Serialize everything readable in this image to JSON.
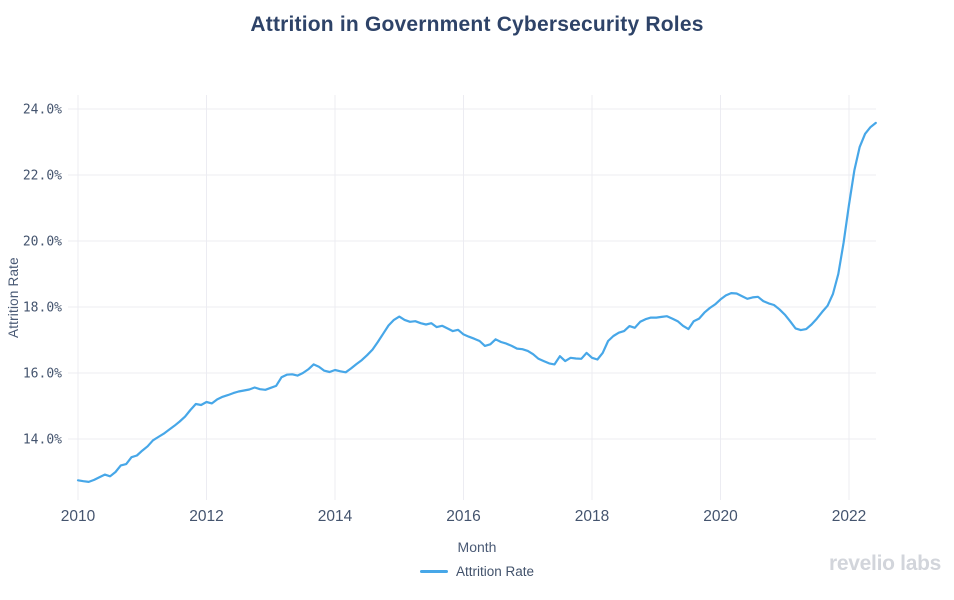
{
  "branding": {
    "logo_text": "revelio labs"
  },
  "colors": {
    "line": "#47a7e8",
    "grid": "#ececf2",
    "title_text": "#2e4368",
    "axis_text": "#44546e",
    "logo_text": "#d2d5db",
    "background": "#ffffff"
  },
  "chart_data": {
    "type": "line",
    "title": "Attrition in Government Cybersecurity Roles",
    "xlabel": "Month",
    "ylabel": "Attrition Rate",
    "series_name": "Attrition Rate",
    "unit": "percent",
    "frequency": "monthly",
    "x_start": "2010-01",
    "x_end": "2022-06",
    "grid": true,
    "legend_position": "bottom-center",
    "y_ticks": [
      "24.0%",
      "22.0%",
      "20.0%",
      "18.0%",
      "16.0%",
      "14.0%"
    ],
    "y_tick_values": [
      24,
      22,
      20,
      18,
      16,
      14
    ],
    "x_ticks": [
      "2010",
      "2012",
      "2014",
      "2016",
      "2018",
      "2020",
      "2022"
    ],
    "x_tick_years": [
      2010,
      2012,
      2014,
      2016,
      2018,
      2020,
      2022
    ],
    "ylim": [
      12.1,
      24.4
    ],
    "months": [
      "2010-01",
      "2010-02",
      "2010-03",
      "2010-04",
      "2010-05",
      "2010-06",
      "2010-07",
      "2010-08",
      "2010-09",
      "2010-10",
      "2010-11",
      "2010-12",
      "2011-01",
      "2011-02",
      "2011-03",
      "2011-04",
      "2011-05",
      "2011-06",
      "2011-07",
      "2011-08",
      "2011-09",
      "2011-10",
      "2011-11",
      "2011-12",
      "2012-01",
      "2012-02",
      "2012-03",
      "2012-04",
      "2012-05",
      "2012-06",
      "2012-07",
      "2012-08",
      "2012-09",
      "2012-10",
      "2012-11",
      "2012-12",
      "2013-01",
      "2013-02",
      "2013-03",
      "2013-04",
      "2013-05",
      "2013-06",
      "2013-07",
      "2013-08",
      "2013-09",
      "2013-10",
      "2013-11",
      "2013-12",
      "2014-01",
      "2014-02",
      "2014-03",
      "2014-04",
      "2014-05",
      "2014-06",
      "2014-07",
      "2014-08",
      "2014-09",
      "2014-10",
      "2014-11",
      "2014-12",
      "2015-01",
      "2015-02",
      "2015-03",
      "2015-04",
      "2015-05",
      "2015-06",
      "2015-07",
      "2015-08",
      "2015-09",
      "2015-10",
      "2015-11",
      "2015-12",
      "2016-01",
      "2016-02",
      "2016-03",
      "2016-04",
      "2016-05",
      "2016-06",
      "2016-07",
      "2016-08",
      "2016-09",
      "2016-10",
      "2016-11",
      "2016-12",
      "2017-01",
      "2017-02",
      "2017-03",
      "2017-04",
      "2017-05",
      "2017-06",
      "2017-07",
      "2017-08",
      "2017-09",
      "2017-10",
      "2017-11",
      "2017-12",
      "2018-01",
      "2018-02",
      "2018-03",
      "2018-04",
      "2018-05",
      "2018-06",
      "2018-07",
      "2018-08",
      "2018-09",
      "2018-10",
      "2018-11",
      "2018-12",
      "2019-01",
      "2019-02",
      "2019-03",
      "2019-04",
      "2019-05",
      "2019-06",
      "2019-07",
      "2019-08",
      "2019-09",
      "2019-10",
      "2019-11",
      "2019-12",
      "2020-01",
      "2020-02",
      "2020-03",
      "2020-04",
      "2020-05",
      "2020-06",
      "2020-07",
      "2020-08",
      "2020-09",
      "2020-10",
      "2020-11",
      "2020-12",
      "2021-01",
      "2021-02",
      "2021-03",
      "2021-04",
      "2021-05",
      "2021-06",
      "2021-07",
      "2021-08",
      "2021-09",
      "2021-10",
      "2021-11",
      "2021-12",
      "2022-01",
      "2022-02",
      "2022-03",
      "2022-04",
      "2022-05",
      "2022-06"
    ],
    "values": [
      12.75,
      12.72,
      12.7,
      12.76,
      12.84,
      12.92,
      12.87,
      13.0,
      13.2,
      13.24,
      13.45,
      13.5,
      13.65,
      13.78,
      13.96,
      14.06,
      14.16,
      14.28,
      14.4,
      14.53,
      14.68,
      14.88,
      15.06,
      15.03,
      15.12,
      15.08,
      15.2,
      15.28,
      15.33,
      15.39,
      15.44,
      15.47,
      15.5,
      15.56,
      15.51,
      15.49,
      15.55,
      15.61,
      15.87,
      15.95,
      15.96,
      15.92,
      16.0,
      16.11,
      16.26,
      16.19,
      16.07,
      16.03,
      16.09,
      16.05,
      16.02,
      16.14,
      16.27,
      16.39,
      16.54,
      16.71,
      16.94,
      17.19,
      17.44,
      17.61,
      17.71,
      17.61,
      17.55,
      17.57,
      17.51,
      17.47,
      17.51,
      17.39,
      17.43,
      17.35,
      17.27,
      17.31,
      17.17,
      17.1,
      17.04,
      16.97,
      16.82,
      16.87,
      17.02,
      16.94,
      16.89,
      16.82,
      16.74,
      16.72,
      16.67,
      16.57,
      16.43,
      16.36,
      16.29,
      16.26,
      16.51,
      16.36,
      16.46,
      16.44,
      16.43,
      16.61,
      16.46,
      16.41,
      16.61,
      16.97,
      17.12,
      17.22,
      17.27,
      17.42,
      17.37,
      17.55,
      17.63,
      17.68,
      17.68,
      17.7,
      17.72,
      17.65,
      17.57,
      17.43,
      17.33,
      17.57,
      17.65,
      17.83,
      17.97,
      18.08,
      18.23,
      18.35,
      18.42,
      18.41,
      18.33,
      18.25,
      18.29,
      18.31,
      18.18,
      18.11,
      18.06,
      17.93,
      17.77,
      17.57,
      17.35,
      17.3,
      17.33,
      17.47,
      17.65,
      17.85,
      18.04,
      18.39,
      19.0,
      19.95,
      21.1,
      22.15,
      22.85,
      23.25,
      23.45,
      23.58
    ]
  }
}
